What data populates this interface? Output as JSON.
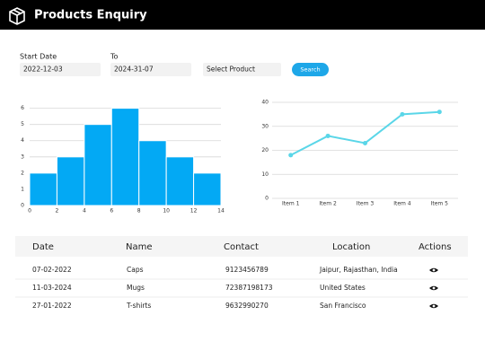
{
  "header": {
    "title": "Products Enquiry"
  },
  "filters": {
    "start_label": "Start Date",
    "start_value": "2022-12-03",
    "end_label": "To",
    "end_value": "2024-31-07",
    "product_placeholder": "Select Product",
    "button": "Search"
  },
  "chart_data": [
    {
      "type": "histogram",
      "bins": [
        0,
        2,
        4,
        6,
        8,
        10,
        12,
        14
      ],
      "values": [
        2,
        3,
        5,
        6,
        4,
        3,
        2
      ],
      "color": "#03a9f4",
      "xlim": [
        0,
        14
      ],
      "xticks": [
        0,
        2,
        4,
        6,
        8,
        10,
        12,
        14
      ],
      "ylim": [
        0,
        6.2
      ],
      "yticks": [
        0,
        1,
        2,
        3,
        4,
        5,
        6
      ],
      "grid": true
    },
    {
      "type": "line",
      "categories": [
        "Item 1",
        "Item 2",
        "Item 3",
        "Item 4",
        "Item 5"
      ],
      "values": [
        18,
        26,
        23,
        35,
        36
      ],
      "color": "#5ad6e8",
      "ylim": [
        0,
        40
      ],
      "yticks": [
        0,
        10,
        20,
        30,
        40
      ],
      "grid": true
    }
  ],
  "table": {
    "columns": [
      "Date",
      "Name",
      "Contact",
      "Location",
      "Actions"
    ],
    "rows": [
      [
        "07-02-2022",
        "Caps",
        "9123456789",
        "Jaipur, Rajasthan, India"
      ],
      [
        "11-03-2024",
        "Mugs",
        "72387198173",
        "United States"
      ],
      [
        "27-01-2022",
        "T-shirts",
        "9632990270",
        "San Francisco"
      ]
    ]
  }
}
